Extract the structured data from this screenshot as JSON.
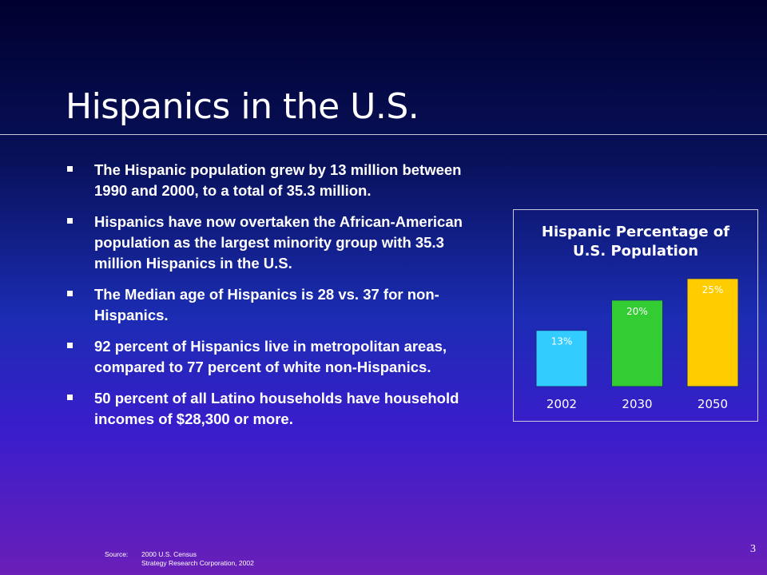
{
  "slide": {
    "title": "Hispanics in the U.S.",
    "page_number": "3"
  },
  "bullets": [
    {
      "text": "The Hispanic population grew by 13 million between 1990 and 2000, to a total of 35.3 million."
    },
    {
      "text": "Hispanics have now overtaken the African-American population as the largest minority group with 35.3 million Hispanics in the U.S."
    },
    {
      "text": "The Median age of Hispanics is 28 vs. 37 for non-Hispanics."
    },
    {
      "text": "92 percent of Hispanics live in metropolitan areas, compared to 77 percent of white non-Hispanics."
    },
    {
      "text": "50 percent of all Latino households have household incomes of $28,300 or more."
    }
  ],
  "source": {
    "label": "Source:",
    "lines": [
      "2000 U.S. Census",
      "Strategy Research Corporation, 2002"
    ]
  },
  "chart_data": {
    "type": "bar",
    "title_lines": [
      "Hispanic Percentage of",
      "U.S. Population"
    ],
    "categories": [
      "2002",
      "2030",
      "2050"
    ],
    "values": [
      13,
      20,
      25
    ],
    "data_labels": [
      "13%",
      "20%",
      "25%"
    ],
    "colors": [
      "#33ccff",
      "#33cc33",
      "#ffcc00"
    ],
    "ylim": [
      0,
      27
    ],
    "grid": false,
    "legend": "none"
  }
}
